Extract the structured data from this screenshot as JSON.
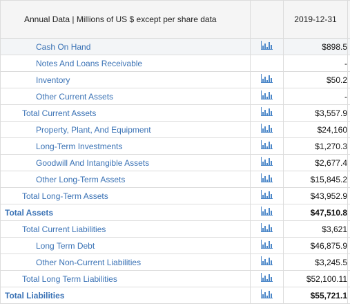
{
  "header": {
    "label": "Annual Data | Millions of US $ except per share data",
    "date": "2019-12-31"
  },
  "rows": [
    {
      "label": "Cash On Hand",
      "value": "$898.5",
      "level": 1,
      "icon": "bar-chart-icon",
      "bold": false
    },
    {
      "label": "Notes And Loans Receivable",
      "value": "-",
      "level": 1,
      "icon": "",
      "bold": false
    },
    {
      "label": "Inventory",
      "value": "$50.2",
      "level": 1,
      "icon": "bar-chart-icon",
      "bold": false
    },
    {
      "label": "Other Current Assets",
      "value": "-",
      "level": 1,
      "icon": "bar-chart-icon",
      "bold": false
    },
    {
      "label": "Total Current Assets",
      "value": "$3,557.9",
      "level": 2,
      "icon": "bar-chart-icon",
      "bold": false
    },
    {
      "label": "Property, Plant, And Equipment",
      "value": "$24,160",
      "level": 1,
      "icon": "bar-chart-icon",
      "bold": false
    },
    {
      "label": "Long-Term Investments",
      "value": "$1,270.3",
      "level": 1,
      "icon": "bar-chart-icon",
      "bold": false
    },
    {
      "label": "Goodwill And Intangible Assets",
      "value": "$2,677.4",
      "level": 1,
      "icon": "bar-chart-icon",
      "bold": false
    },
    {
      "label": "Other Long-Term Assets",
      "value": "$15,845.2",
      "level": 1,
      "icon": "bar-chart-icon",
      "bold": false
    },
    {
      "label": "Total Long-Term Assets",
      "value": "$43,952.9",
      "level": 2,
      "icon": "bar-chart-icon",
      "bold": false
    },
    {
      "label": "Total Assets",
      "value": "$47,510.8",
      "level": 3,
      "icon": "bar-chart-icon",
      "bold": true
    },
    {
      "label": "Total Current Liabilities",
      "value": "$3,621",
      "level": 2,
      "icon": "bar-chart-icon",
      "bold": false
    },
    {
      "label": "Long Term Debt",
      "value": "$46,875.9",
      "level": 1,
      "icon": "bar-chart-icon",
      "bold": false
    },
    {
      "label": "Other Non-Current Liabilities",
      "value": "$3,245.5",
      "level": 1,
      "icon": "bar-chart-icon",
      "bold": false
    },
    {
      "label": "Total Long Term Liabilities",
      "value": "$52,100.11",
      "level": 2,
      "icon": "bar-chart-icon",
      "bold": false
    },
    {
      "label": "Total Liabilities",
      "value": "$55,721.1",
      "level": 3,
      "icon": "bar-chart-icon",
      "bold": true
    }
  ],
  "colors": {
    "label_link": "#3a72b5",
    "icon": "#4a86c8",
    "header_bg": "#f5f5f5",
    "row_shade": "#f3f5f7",
    "border": "#dcdcdc"
  }
}
